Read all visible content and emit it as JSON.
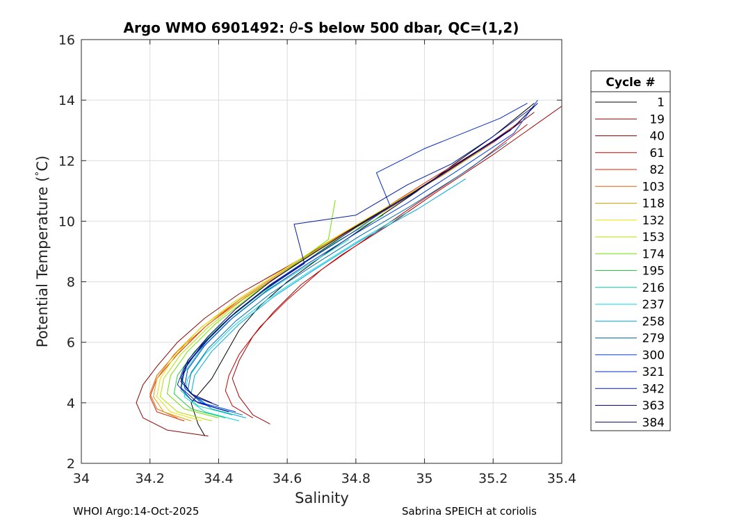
{
  "chart_data": {
    "type": "line",
    "title_prefix": "Argo WMO 6901492: ",
    "title_theta": "θ",
    "title_suffix": "-S below 500 dbar,  QC=(1,2)",
    "xlabel": "Salinity",
    "ylabel_main": "Potential Temperature (",
    "ylabel_degree": "°",
    "ylabel_end": "C)",
    "xlim": [
      34,
      35.4
    ],
    "ylim": [
      2,
      16
    ],
    "xticks": [
      34,
      34.2,
      34.4,
      34.6,
      34.8,
      35,
      35.2,
      35.4
    ],
    "xtick_labels": [
      "34",
      "34.2",
      "34.4",
      "34.6",
      "34.8",
      "35",
      "35.2",
      "35.4"
    ],
    "yticks": [
      2,
      4,
      6,
      8,
      10,
      12,
      14,
      16
    ],
    "ytick_labels": [
      "2",
      "4",
      "6",
      "8",
      "10",
      "12",
      "14",
      "16"
    ],
    "grid": true,
    "legend_title": "Cycle #",
    "legend_position": "right",
    "series": [
      {
        "name": "1",
        "color": "#000000",
        "points": [
          [
            34.36,
            2.9
          ],
          [
            34.34,
            3.3
          ],
          [
            34.32,
            4.0
          ],
          [
            34.38,
            4.8
          ],
          [
            34.42,
            5.6
          ],
          [
            34.46,
            6.4
          ],
          [
            34.52,
            7.2
          ],
          [
            34.6,
            8.0
          ],
          [
            34.72,
            9.0
          ],
          [
            34.85,
            10.0
          ],
          [
            34.98,
            11.0
          ],
          [
            35.1,
            12.0
          ],
          [
            35.2,
            12.8
          ],
          [
            35.32,
            13.9
          ]
        ]
      },
      {
        "name": "19",
        "color": "#8b0000",
        "points": [
          [
            34.37,
            2.9
          ],
          [
            34.25,
            3.1
          ],
          [
            34.18,
            3.5
          ],
          [
            34.16,
            4.0
          ],
          [
            34.18,
            4.6
          ],
          [
            34.22,
            5.2
          ],
          [
            34.28,
            6.0
          ],
          [
            34.36,
            6.8
          ],
          [
            34.46,
            7.6
          ],
          [
            34.6,
            8.5
          ],
          [
            34.75,
            9.5
          ],
          [
            34.9,
            10.5
          ],
          [
            35.05,
            11.5
          ],
          [
            35.2,
            12.6
          ],
          [
            35.32,
            13.6
          ]
        ]
      },
      {
        "name": "40",
        "color": "#a00000",
        "points": [
          [
            34.55,
            3.3
          ],
          [
            34.5,
            3.6
          ],
          [
            34.46,
            4.2
          ],
          [
            34.44,
            4.8
          ],
          [
            34.46,
            5.4
          ],
          [
            34.5,
            6.2
          ],
          [
            34.56,
            7.0
          ],
          [
            34.64,
            7.9
          ],
          [
            34.76,
            8.9
          ],
          [
            34.9,
            9.9
          ],
          [
            35.04,
            11.0
          ],
          [
            35.2,
            12.2
          ],
          [
            35.4,
            13.8
          ]
        ]
      },
      {
        "name": "61",
        "color": "#cc0000",
        "points": [
          [
            34.5,
            3.5
          ],
          [
            34.44,
            3.9
          ],
          [
            34.42,
            4.4
          ],
          [
            34.43,
            4.9
          ],
          [
            34.46,
            5.6
          ],
          [
            34.52,
            6.5
          ],
          [
            34.6,
            7.4
          ],
          [
            34.7,
            8.4
          ],
          [
            34.84,
            9.5
          ],
          [
            34.98,
            10.6
          ],
          [
            35.14,
            11.8
          ],
          [
            35.3,
            13.2
          ]
        ]
      },
      {
        "name": "82",
        "color": "#e02000",
        "points": [
          [
            34.3,
            3.4
          ],
          [
            34.22,
            3.7
          ],
          [
            34.2,
            4.2
          ],
          [
            34.22,
            4.8
          ],
          [
            34.28,
            5.6
          ],
          [
            34.36,
            6.5
          ],
          [
            34.46,
            7.4
          ],
          [
            34.58,
            8.3
          ],
          [
            34.72,
            9.3
          ],
          [
            34.88,
            10.4
          ],
          [
            35.02,
            11.4
          ],
          [
            35.18,
            12.5
          ],
          [
            35.28,
            13.3
          ]
        ]
      },
      {
        "name": "103",
        "color": "#e06000",
        "points": [
          [
            34.28,
            3.5
          ],
          [
            34.22,
            3.8
          ],
          [
            34.2,
            4.3
          ],
          [
            34.22,
            4.9
          ],
          [
            34.28,
            5.7
          ],
          [
            34.37,
            6.6
          ],
          [
            34.48,
            7.5
          ],
          [
            34.6,
            8.4
          ],
          [
            34.74,
            9.4
          ],
          [
            34.9,
            10.5
          ],
          [
            35.05,
            11.5
          ],
          [
            35.2,
            12.6
          ]
        ]
      },
      {
        "name": "118",
        "color": "#e0a000",
        "points": [
          [
            34.32,
            3.4
          ],
          [
            34.24,
            3.7
          ],
          [
            34.21,
            4.2
          ],
          [
            34.22,
            4.8
          ],
          [
            34.27,
            5.6
          ],
          [
            34.35,
            6.5
          ],
          [
            34.46,
            7.4
          ],
          [
            34.58,
            8.3
          ],
          [
            34.72,
            9.3
          ],
          [
            34.88,
            10.3
          ],
          [
            35.02,
            11.3
          ],
          [
            35.16,
            12.3
          ]
        ]
      },
      {
        "name": "132",
        "color": "#e8e000",
        "points": [
          [
            34.35,
            3.4
          ],
          [
            34.26,
            3.7
          ],
          [
            34.22,
            4.2
          ],
          [
            34.23,
            4.8
          ],
          [
            34.27,
            5.5
          ],
          [
            34.34,
            6.4
          ],
          [
            34.44,
            7.3
          ],
          [
            34.56,
            8.2
          ],
          [
            34.7,
            9.2
          ],
          [
            34.85,
            10.2
          ],
          [
            35.0,
            11.2
          ],
          [
            35.14,
            12.2
          ]
        ]
      },
      {
        "name": "153",
        "color": "#b0e000",
        "points": [
          [
            34.38,
            3.4
          ],
          [
            34.28,
            3.7
          ],
          [
            34.23,
            4.2
          ],
          [
            34.24,
            4.8
          ],
          [
            34.29,
            5.6
          ],
          [
            34.37,
            6.5
          ],
          [
            34.47,
            7.4
          ],
          [
            34.59,
            8.3
          ],
          [
            34.73,
            9.3
          ],
          [
            34.88,
            10.3
          ]
        ]
      },
      {
        "name": "174",
        "color": "#70e000",
        "points": [
          [
            34.4,
            3.5
          ],
          [
            34.3,
            3.8
          ],
          [
            34.25,
            4.3
          ],
          [
            34.26,
            4.9
          ],
          [
            34.31,
            5.7
          ],
          [
            34.39,
            6.6
          ],
          [
            34.49,
            7.5
          ],
          [
            34.6,
            8.4
          ],
          [
            34.72,
            9.4
          ],
          [
            34.74,
            10.7
          ]
        ]
      },
      {
        "name": "195",
        "color": "#20d040",
        "points": [
          [
            34.42,
            3.5
          ],
          [
            34.32,
            3.8
          ],
          [
            34.27,
            4.3
          ],
          [
            34.28,
            4.9
          ],
          [
            34.33,
            5.7
          ],
          [
            34.41,
            6.6
          ],
          [
            34.51,
            7.5
          ],
          [
            34.62,
            8.4
          ],
          [
            34.74,
            9.3
          ],
          [
            34.88,
            10.2
          ]
        ]
      },
      {
        "name": "216",
        "color": "#00d0a0",
        "points": [
          [
            34.44,
            3.6
          ],
          [
            34.34,
            3.9
          ],
          [
            34.29,
            4.4
          ],
          [
            34.3,
            5.0
          ],
          [
            34.35,
            5.8
          ],
          [
            34.43,
            6.7
          ],
          [
            34.53,
            7.6
          ],
          [
            34.64,
            8.4
          ],
          [
            34.78,
            9.4
          ]
        ]
      },
      {
        "name": "237",
        "color": "#00d8e0",
        "points": [
          [
            34.46,
            3.4
          ],
          [
            34.36,
            3.7
          ],
          [
            34.3,
            4.2
          ],
          [
            34.31,
            4.8
          ],
          [
            34.36,
            5.6
          ],
          [
            34.44,
            6.5
          ],
          [
            34.54,
            7.4
          ],
          [
            34.66,
            8.3
          ],
          [
            34.8,
            9.3
          ],
          [
            34.95,
            10.3
          ]
        ]
      },
      {
        "name": "258",
        "color": "#00a8e0",
        "points": [
          [
            34.48,
            3.5
          ],
          [
            34.38,
            3.8
          ],
          [
            34.32,
            4.3
          ],
          [
            34.33,
            4.9
          ],
          [
            34.38,
            5.7
          ],
          [
            34.46,
            6.6
          ],
          [
            34.56,
            7.5
          ],
          [
            34.68,
            8.4
          ],
          [
            34.82,
            9.4
          ],
          [
            34.98,
            10.4
          ],
          [
            35.12,
            11.4
          ]
        ]
      },
      {
        "name": "279",
        "color": "#0070b0",
        "points": [
          [
            34.47,
            3.6
          ],
          [
            34.37,
            3.9
          ],
          [
            34.31,
            4.4
          ],
          [
            34.32,
            5.0
          ],
          [
            34.37,
            5.8
          ],
          [
            34.45,
            6.7
          ],
          [
            34.55,
            7.6
          ],
          [
            34.67,
            8.5
          ],
          [
            34.81,
            9.5
          ],
          [
            34.96,
            10.5
          ],
          [
            35.1,
            11.5
          ],
          [
            35.24,
            12.6
          ]
        ]
      },
      {
        "name": "300",
        "color": "#0040e0",
        "points": [
          [
            34.45,
            3.7
          ],
          [
            34.35,
            4.0
          ],
          [
            34.3,
            4.5
          ],
          [
            34.31,
            5.1
          ],
          [
            34.36,
            5.9
          ],
          [
            34.44,
            6.8
          ],
          [
            34.54,
            7.7
          ],
          [
            34.66,
            8.6
          ],
          [
            34.8,
            9.6
          ],
          [
            34.95,
            10.6
          ],
          [
            35.1,
            11.7
          ],
          [
            35.26,
            12.9
          ],
          [
            35.33,
            14.0
          ]
        ]
      },
      {
        "name": "321",
        "color": "#0028c8",
        "points": [
          [
            34.4,
            3.8
          ],
          [
            34.32,
            4.1
          ],
          [
            34.28,
            4.6
          ],
          [
            34.3,
            5.2
          ],
          [
            34.36,
            6.0
          ],
          [
            34.44,
            6.9
          ],
          [
            34.54,
            7.8
          ],
          [
            34.66,
            8.7
          ],
          [
            34.8,
            9.7
          ],
          [
            34.9,
            10.5
          ],
          [
            34.86,
            11.6
          ],
          [
            35.0,
            12.4
          ],
          [
            35.22,
            13.4
          ],
          [
            35.3,
            13.9
          ]
        ]
      },
      {
        "name": "342",
        "color": "#0018a0",
        "points": [
          [
            34.43,
            3.7
          ],
          [
            34.34,
            4.0
          ],
          [
            34.29,
            4.5
          ],
          [
            34.3,
            5.1
          ],
          [
            34.35,
            5.9
          ],
          [
            34.43,
            6.8
          ],
          [
            34.53,
            7.7
          ],
          [
            34.65,
            8.6
          ],
          [
            34.62,
            9.9
          ],
          [
            34.8,
            10.2
          ],
          [
            34.95,
            11.2
          ],
          [
            35.08,
            11.9
          ],
          [
            35.2,
            12.8
          ],
          [
            35.32,
            13.8
          ]
        ]
      },
      {
        "name": "363",
        "color": "#000880",
        "points": [
          [
            34.4,
            3.9
          ],
          [
            34.33,
            4.2
          ],
          [
            34.29,
            4.7
          ],
          [
            34.31,
            5.3
          ],
          [
            34.37,
            6.1
          ],
          [
            34.45,
            7.0
          ],
          [
            34.55,
            7.9
          ],
          [
            34.67,
            8.8
          ],
          [
            34.8,
            9.8
          ],
          [
            34.95,
            10.8
          ],
          [
            35.1,
            11.9
          ],
          [
            35.25,
            13.0
          ],
          [
            35.33,
            13.9
          ]
        ]
      },
      {
        "name": "384",
        "color": "#000060",
        "points": [
          [
            34.38,
            4.0
          ],
          [
            34.32,
            4.3
          ],
          [
            34.29,
            4.8
          ],
          [
            34.31,
            5.4
          ],
          [
            34.37,
            6.2
          ],
          [
            34.45,
            7.1
          ],
          [
            34.55,
            8.0
          ],
          [
            34.67,
            8.9
          ],
          [
            34.81,
            9.9
          ],
          [
            34.96,
            10.9
          ],
          [
            35.11,
            12.0
          ],
          [
            35.26,
            13.1
          ],
          [
            35.32,
            13.8
          ]
        ]
      }
    ]
  },
  "footer": {
    "left": "WHOI Argo:14-Oct-2025",
    "right": "Sabrina SPEICH at coriolis"
  }
}
